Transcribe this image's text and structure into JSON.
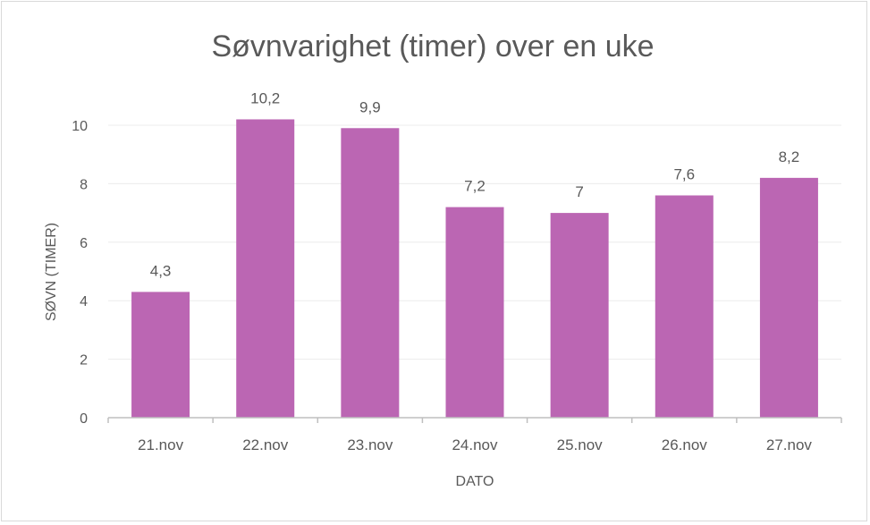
{
  "chart_data": {
    "type": "bar",
    "title": "Søvnvarighet (timer) over en  uke",
    "xlabel": "DATO",
    "ylabel": "SØVN (TIMER)",
    "categories": [
      "21.nov",
      "22.nov",
      "23.nov",
      "24.nov",
      "25.nov",
      "26.nov",
      "27.nov"
    ],
    "values": [
      4.3,
      10.2,
      9.9,
      7.2,
      7,
      7.6,
      8.2
    ],
    "data_labels": [
      "4,3",
      "10,2",
      "9,9",
      "7,2",
      "7",
      "7,6",
      "8,2"
    ],
    "ylim": [
      0,
      10
    ],
    "yticks": [
      0,
      2,
      4,
      6,
      8,
      10
    ],
    "grid": true,
    "legend": "none",
    "bar_color": "#bb66b3"
  }
}
